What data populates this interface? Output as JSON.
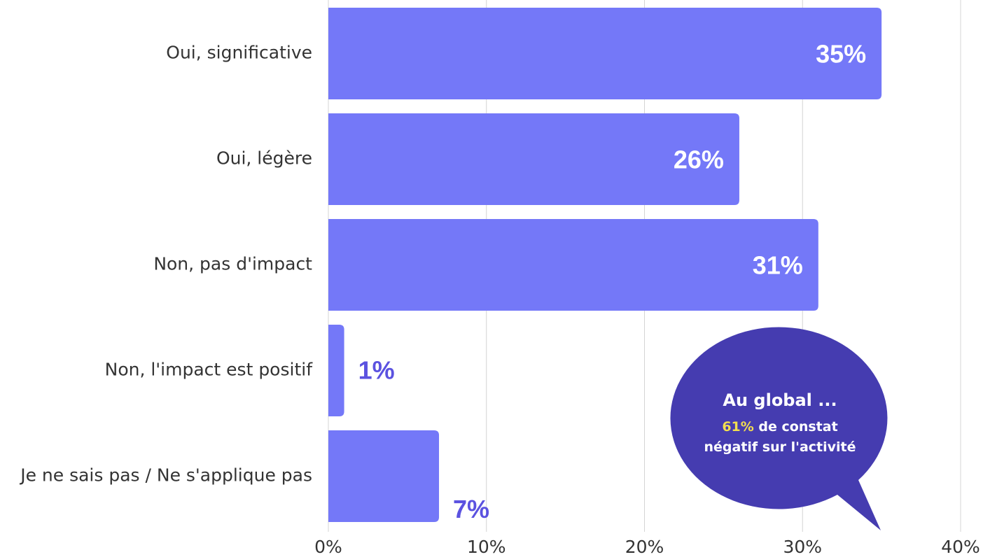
{
  "chart_data": {
    "type": "bar",
    "orientation": "horizontal",
    "categories": [
      "Oui, significative",
      "Oui, légère",
      "Non, pas d'impact",
      "Non, l'impact est positif",
      "Je ne sais pas / Ne s'applique pas"
    ],
    "values": [
      35,
      26,
      31,
      1,
      7
    ],
    "data_labels": [
      "35%",
      "26%",
      "31%",
      "1%",
      "7%"
    ],
    "xlim": [
      0,
      40
    ],
    "x_ticks": [
      "0%",
      "10%",
      "20%",
      "30%",
      "40%"
    ],
    "grid": "vertical",
    "bar_color": "#7478f8",
    "label_color_inside": "#ffffff",
    "label_color_outside": "#5b52e0"
  },
  "callout": {
    "title": "Au global ...",
    "highlight": "61%",
    "line1_rest": " de constat",
    "line2": "négatif sur l'activité",
    "bg_color": "#453cb0",
    "highlight_color": "#f2de4f"
  }
}
